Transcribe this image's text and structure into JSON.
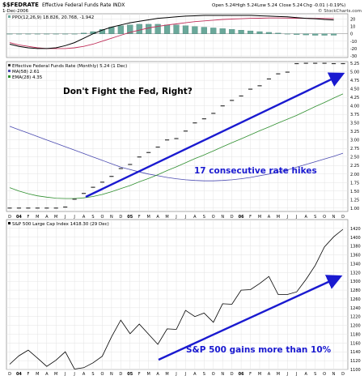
{
  "header": {
    "symbol": "$$FEDRATE",
    "name": "Effective Federal Funds Rate INDX",
    "date": "1-Dec-2006",
    "open": "Open 5.24",
    "high": "High 5.24",
    "low": "Low 5.24",
    "close": "Close 5.24",
    "chg": "Chg -0.01 (-0.19%)",
    "credit": "© StockCharts.com"
  },
  "colors": {
    "rate_dots": "#333333",
    "ma58": "#4a4ab0",
    "ema28": "#2f8f2f",
    "arrow": "#1a1ad0",
    "ppo_black": "#000000",
    "ppo_red": "#c0305a",
    "ppo_hist": "#6aa89a",
    "sp_line": "#000000",
    "grid": "#e3e3e3"
  },
  "chart_data": [
    {
      "type": "bar",
      "legend": "PPO(12,26,9) 18.826, 20.768, -1.942",
      "ylim": [
        -30,
        25
      ],
      "yticks": [
        -30,
        -20,
        -10,
        0,
        10,
        20
      ],
      "histogram": [
        0,
        0,
        0,
        0,
        0,
        0,
        0,
        0,
        1,
        3,
        6,
        9,
        11,
        12,
        13,
        13,
        13,
        12,
        12,
        11,
        10,
        9,
        8,
        7,
        6,
        5,
        4,
        3,
        2,
        1,
        0,
        -1,
        -1.5,
        -2,
        -2,
        -1.9
      ],
      "ppo_line": [
        -14,
        -17,
        -19,
        -20,
        -20,
        -19,
        -16,
        -12,
        -6,
        0,
        5,
        9,
        12,
        15,
        17,
        19,
        21,
        22,
        23,
        24,
        24.5,
        25,
        25,
        25,
        25,
        25,
        25,
        24.5,
        24,
        23.5,
        23,
        22,
        21,
        20.5,
        19.5,
        18.8
      ],
      "signal_line": [
        -12,
        -15,
        -17,
        -19,
        -20,
        -20,
        -20,
        -19,
        -17,
        -14,
        -10,
        -6,
        -2,
        2,
        5,
        8,
        10,
        12,
        13.5,
        15,
        16.5,
        17.5,
        18.5,
        19.5,
        20,
        20.5,
        21,
        21.2,
        21.5,
        21.5,
        21.4,
        21.2,
        21,
        20.9,
        20.8,
        20.77
      ]
    },
    {
      "type": "scatter",
      "legend": "Effective Federal Funds Rate (Monthly) 5.24 (1 Dec)",
      "ma_label": "MA(58) 2.61",
      "ema_label": "EMA(28) 4.35",
      "annotation_title": "Don't Fight the Fed, Right?",
      "annotation_arrow": "17 consecutive rate hikes",
      "ylim": [
        0.9,
        5.3
      ],
      "yticks": [
        "1.00",
        "1.25",
        "1.50",
        "1.75",
        "2.00",
        "2.25",
        "2.50",
        "2.75",
        "3.00",
        "3.25",
        "3.50",
        "3.75",
        "4.00",
        "4.25",
        "4.50",
        "4.75",
        "5.00",
        "5.25"
      ],
      "x_labels": [
        "D",
        "04",
        "F",
        "M",
        "A",
        "M",
        "J",
        "J",
        "A",
        "S",
        "O",
        "N",
        "D",
        "05",
        "F",
        "M",
        "A",
        "M",
        "J",
        "J",
        "A",
        "S",
        "O",
        "N",
        "D",
        "06",
        "F",
        "M",
        "A",
        "M",
        "J",
        "J",
        "A",
        "S",
        "O",
        "N",
        "D"
      ],
      "rate": [
        1.0,
        1.0,
        1.0,
        1.0,
        1.0,
        1.0,
        1.03,
        1.26,
        1.43,
        1.61,
        1.76,
        1.93,
        2.16,
        2.28,
        2.5,
        2.63,
        2.79,
        3.0,
        3.04,
        3.26,
        3.5,
        3.62,
        3.78,
        4.0,
        4.16,
        4.29,
        4.49,
        4.59,
        4.79,
        4.94,
        4.99,
        5.24,
        5.25,
        5.25,
        5.25,
        5.24,
        5.24
      ],
      "ma58": [
        3.4,
        3.3,
        3.2,
        3.1,
        3.0,
        2.9,
        2.8,
        2.7,
        2.6,
        2.5,
        2.4,
        2.3,
        2.2,
        2.13,
        2.06,
        2.0,
        1.95,
        1.9,
        1.86,
        1.83,
        1.81,
        1.8,
        1.8,
        1.81,
        1.83,
        1.86,
        1.9,
        1.95,
        2.0,
        2.06,
        2.12,
        2.2,
        2.28,
        2.36,
        2.44,
        2.52,
        2.61
      ],
      "ema28": [
        1.6,
        1.5,
        1.42,
        1.36,
        1.32,
        1.29,
        1.28,
        1.28,
        1.3,
        1.34,
        1.4,
        1.48,
        1.57,
        1.66,
        1.77,
        1.87,
        1.98,
        2.1,
        2.21,
        2.33,
        2.45,
        2.56,
        2.68,
        2.8,
        2.92,
        3.03,
        3.15,
        3.27,
        3.38,
        3.5,
        3.61,
        3.72,
        3.85,
        3.98,
        4.1,
        4.23,
        4.35
      ]
    },
    {
      "type": "line",
      "legend": "S&P 500 Large Cap Index 1418.30 (29 Dec)",
      "annotation_arrow": "S&P 500 gains more than 10%",
      "ylim": [
        1100,
        1440
      ],
      "yticks": [
        "1100",
        "1120",
        "1140",
        "1160",
        "1180",
        "1200",
        "1220",
        "1240",
        "1260",
        "1280",
        "1300",
        "1320",
        "1340",
        "1360",
        "1380",
        "1400",
        "1420"
      ],
      "x_labels": [
        "D",
        "04",
        "F",
        "M",
        "A",
        "M",
        "J",
        "J",
        "A",
        "S",
        "O",
        "N",
        "D",
        "05",
        "F",
        "M",
        "A",
        "M",
        "J",
        "J",
        "A",
        "S",
        "O",
        "N",
        "D",
        "06",
        "F",
        "M",
        "A",
        "M",
        "J",
        "J",
        "A",
        "S",
        "O",
        "N",
        "D"
      ],
      "values": [
        1112,
        1131,
        1144,
        1126,
        1107,
        1121,
        1140,
        1101,
        1104,
        1115,
        1130,
        1174,
        1212,
        1181,
        1203,
        1180,
        1157,
        1192,
        1191,
        1234,
        1220,
        1228,
        1207,
        1249,
        1248,
        1280,
        1281,
        1295,
        1311,
        1270,
        1270,
        1276,
        1304,
        1336,
        1378,
        1401,
        1418
      ]
    }
  ]
}
